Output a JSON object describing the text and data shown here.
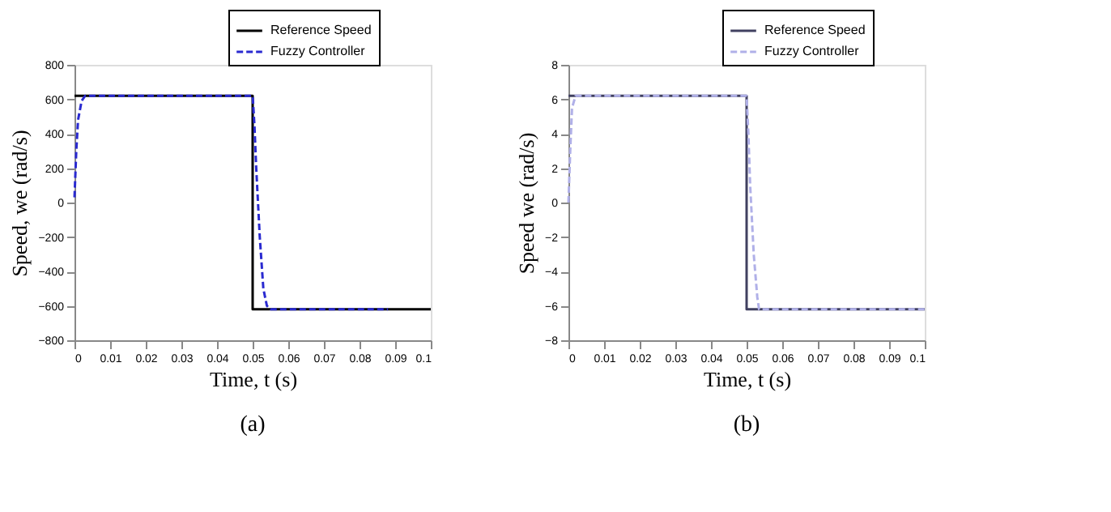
{
  "chart_data": [
    {
      "type": "line",
      "xlabel": "Time, t (s)",
      "ylabel": "Speed, we (rad/s)",
      "annotations": [
        "(a)"
      ],
      "xlim": [
        0,
        0.1
      ],
      "xticks": [
        0,
        0.01,
        0.02,
        0.03,
        0.04,
        0.05,
        0.06,
        0.07,
        0.08,
        0.09,
        0.1
      ],
      "ylim": [
        -800,
        800
      ],
      "yticks": [
        -800,
        -600,
        -400,
        -200,
        0,
        200,
        400,
        600,
        800
      ],
      "grid": false,
      "legend": "top right",
      "series": [
        {
          "name": "Reference Speed",
          "color": "#000000",
          "line_style": "solid",
          "x": [
            0,
            0.05,
            0.05,
            0.1
          ],
          "values": [
            620,
            620,
            -620,
            -620
          ]
        },
        {
          "name": "Fuzzy Controller",
          "color": "#2a2ad0",
          "line_style": "dashed",
          "x": [
            0,
            0.0005,
            0.001,
            0.002,
            0.003,
            0.05,
            0.0505,
            0.051,
            0.052,
            0.053,
            0.054,
            0.055,
            0.088
          ],
          "values": [
            30,
            300,
            480,
            590,
            620,
            620,
            450,
            200,
            -200,
            -500,
            -600,
            -620,
            -620
          ]
        }
      ]
    },
    {
      "type": "line",
      "xlabel": "Time, t (s)",
      "ylabel": "Speed we (rad/s)",
      "annotations": [
        "(b)"
      ],
      "xlim": [
        0,
        0.1
      ],
      "xticks": [
        0,
        0.01,
        0.02,
        0.03,
        0.04,
        0.05,
        0.06,
        0.07,
        0.08,
        0.09,
        0.1
      ],
      "ylim": [
        -8,
        8
      ],
      "yticks": [
        -8,
        -6,
        -4,
        -2,
        0,
        2,
        4,
        6,
        8
      ],
      "grid": false,
      "legend": "top right",
      "series": [
        {
          "name": "Reference Speed",
          "color": "#404060",
          "line_style": "solid",
          "x": [
            0,
            0.05,
            0.05,
            0.1
          ],
          "values": [
            6.2,
            6.2,
            -6.2,
            -6.2
          ]
        },
        {
          "name": "Fuzzy Controller",
          "color": "#b0b0e8",
          "line_style": "dashed",
          "x": [
            0,
            0.0005,
            0.001,
            0.002,
            0.05,
            0.0505,
            0.051,
            0.052,
            0.053,
            0.0535,
            0.1
          ],
          "values": [
            0,
            3,
            5.5,
            6.2,
            6.2,
            4,
            1,
            -3,
            -5.5,
            -6.2,
            -6.2
          ]
        }
      ]
    }
  ]
}
